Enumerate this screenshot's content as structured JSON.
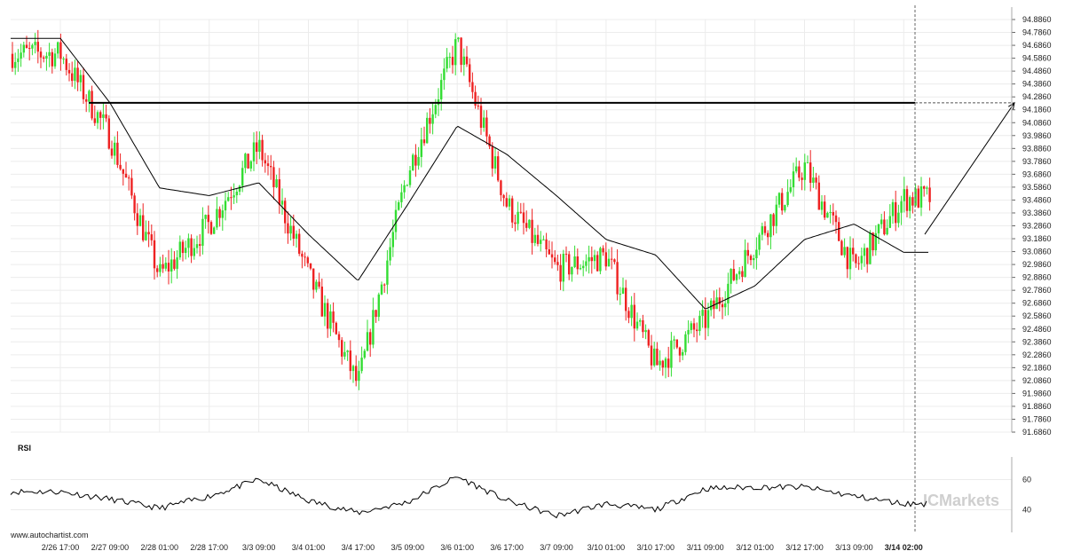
{
  "chart_data": {
    "type": "candlestick",
    "price_axis": {
      "min": 91.686,
      "max": 94.886,
      "ticks": [
        94.886,
        94.786,
        94.686,
        94.586,
        94.486,
        94.386,
        94.286,
        94.186,
        94.086,
        93.986,
        93.886,
        93.786,
        93.686,
        93.586,
        93.486,
        93.386,
        93.286,
        93.186,
        93.086,
        92.986,
        92.886,
        92.786,
        92.686,
        92.586,
        92.486,
        92.386,
        92.286,
        92.186,
        92.086,
        91.986,
        91.886,
        91.786,
        91.686
      ],
      "tick_labels": [
        "94.8860",
        "94.7860",
        "94.6860",
        "94.5860",
        "94.4860",
        "94.3860",
        "94.2860",
        "94.1860",
        "94.0860",
        "93.9860",
        "93.8860",
        "93.7860",
        "93.6860",
        "93.5860",
        "93.4860",
        "93.3860",
        "93.2860",
        "93.1860",
        "93.0860",
        "92.9860",
        "92.8860",
        "92.7860",
        "92.6860",
        "92.5860",
        "92.4860",
        "92.3860",
        "92.2860",
        "92.1860",
        "92.0860",
        "91.9860",
        "91.8860",
        "91.7860",
        "91.6860"
      ],
      "position": "right"
    },
    "x_labels": [
      "2/26 17:00",
      "2/27 09:00",
      "2/28 01:00",
      "2/28 17:00",
      "3/3 09:00",
      "3/4 01:00",
      "3/4 17:00",
      "3/5 09:00",
      "3/6 01:00",
      "3/6 17:00",
      "3/7 09:00",
      "3/10 01:00",
      "3/10 17:00",
      "3/11 09:00",
      "3/12 01:00",
      "3/12 17:00",
      "3/13 09:00",
      "3/14 02:00"
    ],
    "x_label_bold_index": 17,
    "resistance_level": 94.24,
    "projection_target": 94.24,
    "moving_average_key_points": [
      {
        "label": "2/26 17:00",
        "value": 94.74
      },
      {
        "label": "2/27 09:00",
        "value": 94.24
      },
      {
        "label": "2/28 01:00",
        "value": 93.58
      },
      {
        "label": "2/28 17:00",
        "value": 93.52
      },
      {
        "label": "3/3 09:00",
        "value": 93.62
      },
      {
        "label": "3/4 01:00",
        "value": 93.22
      },
      {
        "label": "3/4 17:00",
        "value": 92.86
      },
      {
        "label": "3/5 09:00",
        "value": 93.45
      },
      {
        "label": "3/6 01:00",
        "value": 94.06
      },
      {
        "label": "3/6 17:00",
        "value": 93.84
      },
      {
        "label": "3/7 09:00",
        "value": 93.52
      },
      {
        "label": "3/10 01:00",
        "value": 93.18
      },
      {
        "label": "3/10 17:00",
        "value": 93.06
      },
      {
        "label": "3/11 09:00",
        "value": 92.64
      },
      {
        "label": "3/12 01:00",
        "value": 92.82
      },
      {
        "label": "3/12 17:00",
        "value": 93.18
      },
      {
        "label": "3/13 09:00",
        "value": 93.3
      },
      {
        "label": "3/14 02:00",
        "value": 93.08
      }
    ],
    "price_path_key_points": [
      {
        "label": "2/26 17:00",
        "value": 94.62
      },
      {
        "label": "2/27 09:00",
        "value": 93.98
      },
      {
        "label": "2/28 01:00",
        "value": 92.9
      },
      {
        "label": "2/28 17:00",
        "value": 93.3
      },
      {
        "label": "3/3 09:00",
        "value": 93.9
      },
      {
        "label": "3/4 01:00",
        "value": 92.9
      },
      {
        "label": "3/4 17:00",
        "value": 92.05
      },
      {
        "label": "3/5 09:00",
        "value": 93.7
      },
      {
        "label": "3/6 01:00",
        "value": 94.7
      },
      {
        "label": "3/6 17:00",
        "value": 93.45
      },
      {
        "label": "3/7 09:00",
        "value": 92.95
      },
      {
        "label": "3/10 01:00",
        "value": 93.05
      },
      {
        "label": "3/10 17:00",
        "value": 92.2
      },
      {
        "label": "3/11 09:00",
        "value": 92.55
      },
      {
        "label": "3/12 01:00",
        "value": 93.15
      },
      {
        "label": "3/12 17:00",
        "value": 93.75
      },
      {
        "label": "3/13 09:00",
        "value": 92.95
      },
      {
        "label": "3/14 02:00",
        "value": 93.5
      }
    ],
    "rsi": {
      "label": "RSI",
      "levels": [
        60,
        40
      ],
      "level_labels": [
        "60",
        "40"
      ],
      "key_points": [
        {
          "label": "2/26 17:00",
          "value": 52
        },
        {
          "label": "2/27 09:00",
          "value": 47
        },
        {
          "label": "2/28 01:00",
          "value": 41
        },
        {
          "label": "2/28 17:00",
          "value": 49
        },
        {
          "label": "3/3 09:00",
          "value": 60
        },
        {
          "label": "3/4 01:00",
          "value": 46
        },
        {
          "label": "3/4 17:00",
          "value": 38
        },
        {
          "label": "3/5 09:00",
          "value": 45
        },
        {
          "label": "3/6 01:00",
          "value": 62
        },
        {
          "label": "3/6 17:00",
          "value": 46
        },
        {
          "label": "3/7 09:00",
          "value": 36
        },
        {
          "label": "3/10 01:00",
          "value": 44
        },
        {
          "label": "3/10 17:00",
          "value": 40
        },
        {
          "label": "3/11 09:00",
          "value": 54
        },
        {
          "label": "3/12 01:00",
          "value": 55
        },
        {
          "label": "3/12 17:00",
          "value": 55
        },
        {
          "label": "3/13 09:00",
          "value": 49
        },
        {
          "label": "3/14 02:00",
          "value": 44
        }
      ]
    },
    "colors": {
      "up": "#33dd33",
      "down": "#ee2222",
      "lines": "#000000",
      "grid": "#ececec"
    },
    "grid": true
  },
  "branding": {
    "watermark": "ICMarkets",
    "source": "www.autochartist.com"
  }
}
